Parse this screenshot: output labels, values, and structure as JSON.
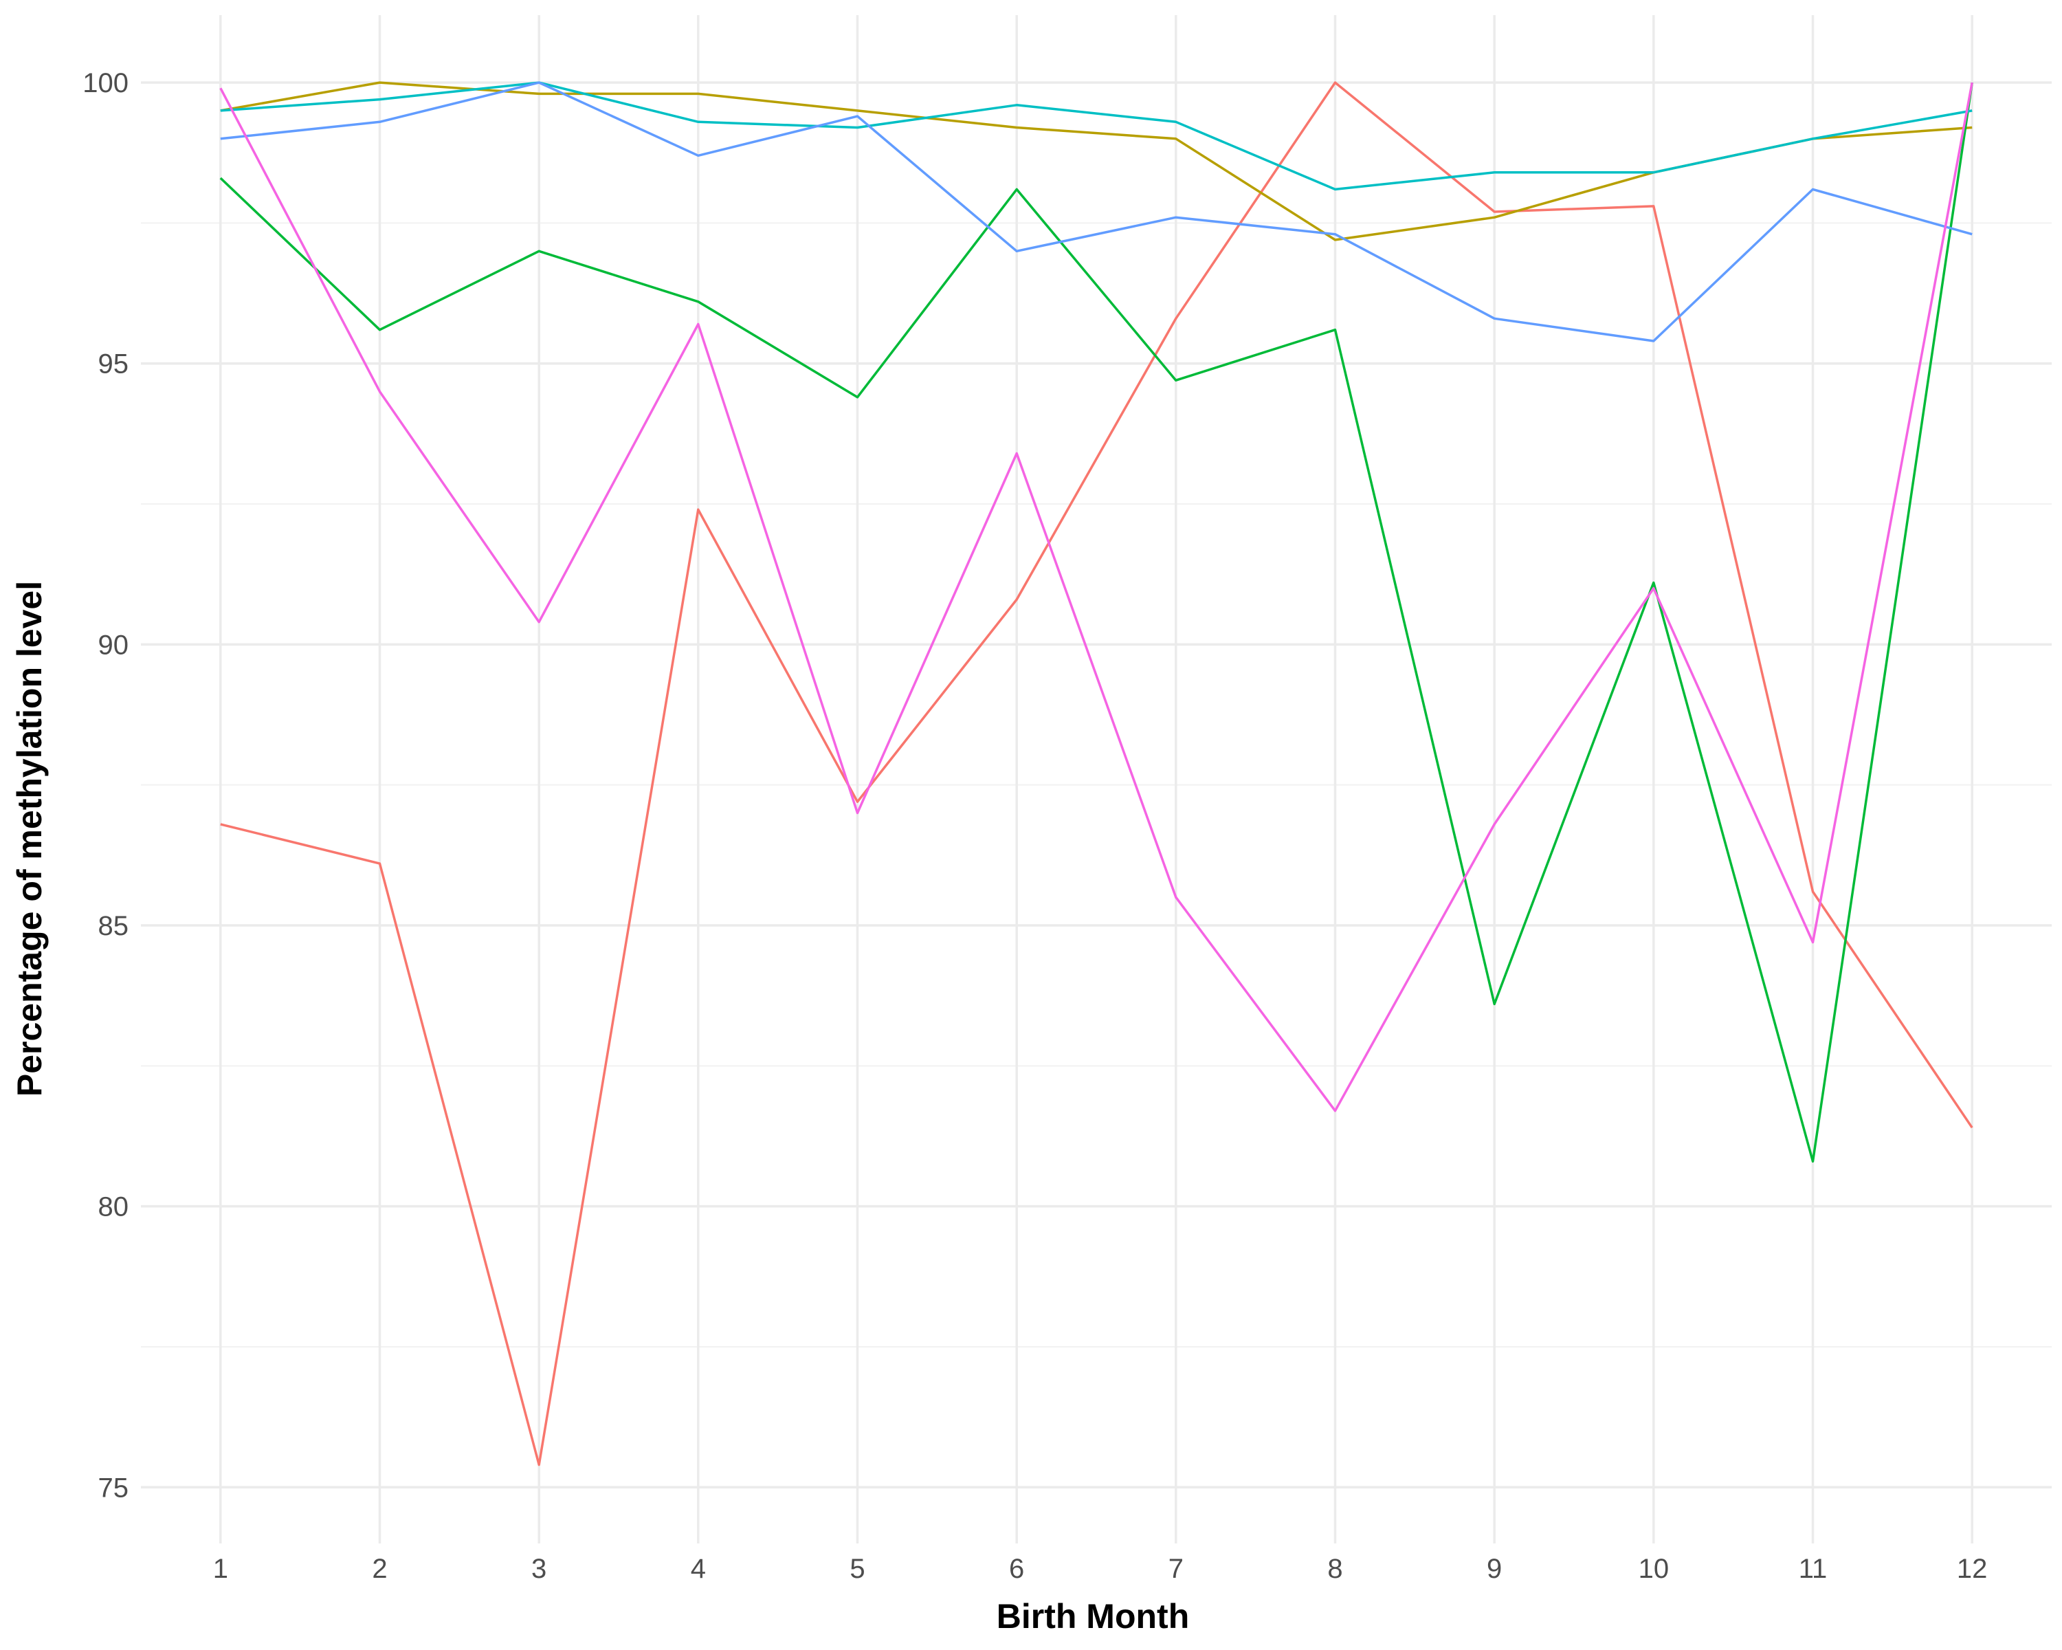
{
  "chart_data": {
    "type": "line",
    "title": "",
    "xlabel": "Birth Month",
    "ylabel": "Percentage of methylation level",
    "x": [
      1,
      2,
      3,
      4,
      5,
      6,
      7,
      8,
      9,
      10,
      11,
      12
    ],
    "x_ticks": [
      "1",
      "2",
      "3",
      "4",
      "5",
      "6",
      "7",
      "8",
      "9",
      "10",
      "11",
      "12"
    ],
    "xlim": [
      0.5,
      12.5
    ],
    "y_ticks": [
      "75",
      "80",
      "85",
      "90",
      "95",
      "100"
    ],
    "ylim": [
      74.0,
      101.2
    ],
    "grid": true,
    "legend": "none",
    "series": [
      {
        "color": "#F8766D",
        "values": [
          86.8,
          86.1,
          75.4,
          92.4,
          87.2,
          90.8,
          95.8,
          100.0,
          97.7,
          97.8,
          85.6,
          81.4
        ]
      },
      {
        "color": "#B79F00",
        "values": [
          99.5,
          100.0,
          99.8,
          99.8,
          99.5,
          99.2,
          99.0,
          97.2,
          97.6,
          98.4,
          99.0,
          99.2
        ]
      },
      {
        "color": "#00BA38",
        "values": [
          98.3,
          95.6,
          97.0,
          96.1,
          94.4,
          98.1,
          94.7,
          95.6,
          83.6,
          91.1,
          80.8,
          100.0
        ]
      },
      {
        "color": "#00BFC4",
        "values": [
          99.5,
          99.7,
          100.0,
          99.3,
          99.2,
          99.6,
          99.3,
          98.1,
          98.4,
          98.4,
          99.0,
          99.5
        ]
      },
      {
        "color": "#619CFF",
        "values": [
          99.0,
          99.3,
          100.0,
          98.7,
          99.4,
          97.0,
          97.6,
          97.3,
          95.8,
          95.4,
          98.1,
          97.3
        ]
      },
      {
        "color": "#F564E3",
        "values": [
          99.9,
          94.5,
          90.4,
          95.7,
          87.0,
          93.4,
          85.5,
          81.7,
          86.8,
          91.0,
          84.7,
          100.0
        ]
      }
    ]
  }
}
